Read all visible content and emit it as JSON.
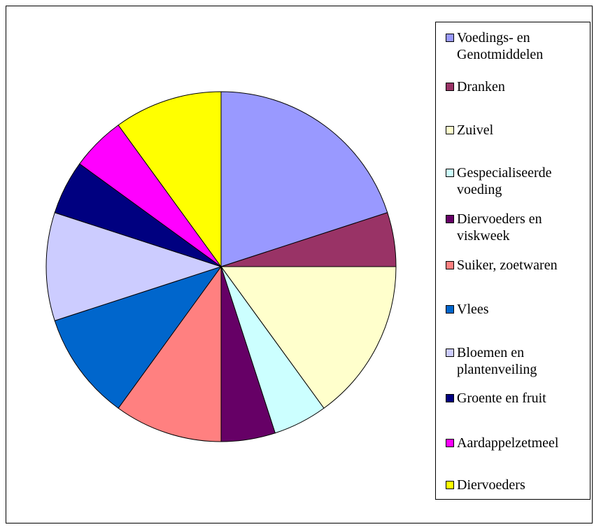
{
  "chart_data": {
    "type": "pie",
    "categories": [
      "Voedings- en Genotmiddelen",
      "Dranken",
      "Zuivel",
      "Gespecialiseerde voeding",
      "Diervoeders en viskweek",
      "Suiker, zoetwaren",
      "Vlees",
      "Bloemen en plantenveiling",
      "Groente en fruit",
      "Aardappelzetmeel",
      "Diervoeders"
    ],
    "values": [
      20,
      5,
      15,
      5,
      5,
      10,
      10,
      10,
      5,
      5,
      10
    ],
    "colors": [
      "#9999ff",
      "#993366",
      "#ffffcc",
      "#ccffff",
      "#660066",
      "#ff8080",
      "#0066cc",
      "#ccccff",
      "#000080",
      "#ff00ff",
      "#ffff00"
    ],
    "legend": "right"
  }
}
